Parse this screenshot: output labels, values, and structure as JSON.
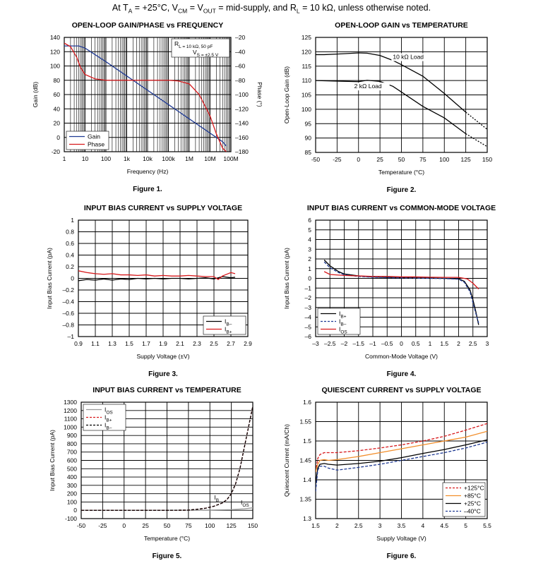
{
  "header": {
    "parts": [
      "At T",
      "A",
      " = +25°C, V",
      "CM",
      " = V",
      "OUT",
      " = mid-supply, and R",
      "L",
      " = 10 kΩ, unless otherwise noted."
    ]
  },
  "chart_data": [
    {
      "id": "fig1",
      "type": "line",
      "title": "OPEN-LOOP GAIN/PHASE vs FREQUENCY",
      "figure_label": "Figure 1.",
      "xlabel": "Frequency (Hz)",
      "ylabel": "Gain (dB)",
      "y2label": "Phase (°)",
      "x_scale": "log",
      "xlim": [
        1,
        100000000
      ],
      "ylim": [
        -20,
        140
      ],
      "y2lim": [
        -180,
        -20
      ],
      "x_ticks": [
        1,
        10,
        100,
        1000,
        10000,
        100000,
        1000000,
        10000000,
        100000000
      ],
      "x_tick_labels": [
        "1",
        "10",
        "100",
        "1k",
        "10k",
        "100k",
        "1M",
        "10M",
        "100M"
      ],
      "y_ticks": [
        -20,
        0,
        20,
        40,
        60,
        80,
        100,
        120,
        140
      ],
      "y2_ticks": [
        -180,
        -160,
        -140,
        -120,
        -100,
        -80,
        -60,
        -40,
        -20
      ],
      "annotation_lines": [
        "R_L = 10 kΩ, 50 pF",
        "V_S = ±2.5 V"
      ],
      "legend_position": "bottom-left",
      "series": [
        {
          "name": "Gain",
          "color": "#1f3a93",
          "axis": "left",
          "x": [
            1,
            5,
            10,
            100,
            1000,
            10000,
            100000,
            1000000,
            10000000,
            40000000,
            60000000
          ],
          "y": [
            128,
            128,
            125,
            106,
            86,
            66,
            46,
            26,
            6,
            -6,
            -12
          ]
        },
        {
          "name": "Phase",
          "color": "#d7191c",
          "axis": "right",
          "x": [
            1,
            2,
            4,
            6,
            10,
            30,
            100,
            1000,
            10000,
            100000,
            300000,
            1000000,
            3000000,
            10000000,
            20000000,
            40000000,
            60000000
          ],
          "y": [
            -28,
            -33,
            -48,
            -62,
            -72,
            -78,
            -80,
            -80,
            -80,
            -80,
            -81,
            -85,
            -100,
            -130,
            -155,
            -175,
            -180
          ]
        }
      ]
    },
    {
      "id": "fig2",
      "type": "line",
      "title": "OPEN-LOOP GAIN vs TEMPERATURE",
      "figure_label": "Figure 2.",
      "xlabel": "Temperature (°C)",
      "ylabel": "Open-Loop Gain (dB)",
      "xlim": [
        -50,
        150
      ],
      "ylim": [
        85,
        125
      ],
      "x_ticks": [
        -50,
        -25,
        0,
        25,
        50,
        75,
        100,
        125,
        150
      ],
      "y_ticks": [
        85,
        90,
        95,
        100,
        105,
        110,
        115,
        120,
        125
      ],
      "series": [
        {
          "name": "10 kΩ Load",
          "color": "#000000",
          "x": [
            -50,
            -40,
            -25,
            0,
            10,
            25,
            40,
            50,
            75,
            100,
            125,
            150
          ],
          "y": [
            119,
            119,
            119.2,
            119.6,
            119.5,
            118.7,
            117,
            115.5,
            111.5,
            105.5,
            99,
            93
          ],
          "dashed_from": 125,
          "label_at": [
            40,
            117.5
          ]
        },
        {
          "name": "2 kΩ Load",
          "color": "#000000",
          "x": [
            -50,
            -25,
            0,
            10,
            25,
            40,
            50,
            75,
            100,
            125,
            150
          ],
          "y": [
            110,
            109.8,
            109.6,
            110.1,
            109.7,
            108,
            106,
            101,
            97,
            91.5,
            87
          ],
          "dashed_from": 125,
          "label_at": [
            -5,
            107.3
          ]
        }
      ]
    },
    {
      "id": "fig3",
      "type": "line",
      "title": "INPUT BIAS CURRENT vs SUPPLY VOLTAGE",
      "figure_label": "Figure 3.",
      "xlabel": "Supply Voltage (±V)",
      "ylabel": "Input Bias Current (pA)",
      "xlim": [
        0.9,
        2.9
      ],
      "ylim": [
        -1,
        1
      ],
      "x_ticks": [
        0.9,
        1.1,
        1.3,
        1.5,
        1.7,
        1.9,
        2.1,
        2.3,
        2.5,
        2.7,
        2.9
      ],
      "y_ticks": [
        -1,
        -0.8,
        -0.6,
        -0.4,
        -0.2,
        0,
        0.2,
        0.4,
        0.6,
        0.8,
        1
      ],
      "y_tick_labels": [
        "–1",
        "–0.8",
        "–0.6",
        "–0.4",
        "–0.2",
        "0",
        "0.2",
        "0.4",
        "0.6",
        "0.8",
        "1"
      ],
      "legend_position": "bottom-right",
      "series": [
        {
          "name": "I_B–",
          "color": "#000000",
          "x": [
            0.9,
            1.0,
            1.1,
            1.2,
            1.3,
            1.4,
            1.5,
            1.6,
            1.7,
            1.8,
            1.9,
            2.0,
            2.1,
            2.2,
            2.3,
            2.4,
            2.5,
            2.6,
            2.7,
            2.75
          ],
          "y": [
            -0.04,
            -0.02,
            -0.03,
            -0.01,
            -0.03,
            -0.01,
            -0.02,
            0.0,
            -0.01,
            0.0,
            -0.01,
            0.0,
            0.0,
            -0.01,
            0.0,
            0.01,
            -0.01,
            0.03,
            0.01,
            0.02
          ]
        },
        {
          "name": "I_B+",
          "color": "#d7191c",
          "x": [
            0.9,
            1.0,
            1.1,
            1.2,
            1.3,
            1.4,
            1.5,
            1.6,
            1.7,
            1.8,
            1.9,
            2.0,
            2.1,
            2.2,
            2.3,
            2.4,
            2.5,
            2.55,
            2.6,
            2.7,
            2.75
          ],
          "y": [
            0.13,
            0.1,
            0.08,
            0.07,
            0.08,
            0.06,
            0.06,
            0.05,
            0.06,
            0.04,
            0.05,
            0.04,
            0.04,
            0.05,
            0.04,
            0.03,
            0.03,
            -0.02,
            0.04,
            0.1,
            0.08
          ]
        }
      ]
    },
    {
      "id": "fig4",
      "type": "line",
      "title": "INPUT BIAS CURRENT vs COMMON-MODE VOLTAGE",
      "figure_label": "Figure 4.",
      "xlabel": "Common-Mode Voltage (V)",
      "ylabel": "Input Bias Current (pA)",
      "xlim": [
        -3,
        3
      ],
      "ylim": [
        -6,
        6
      ],
      "x_ticks": [
        -3,
        -2.5,
        -2,
        -1.5,
        -1,
        -0.5,
        0,
        0.5,
        1,
        1.5,
        2,
        2.5,
        3
      ],
      "x_tick_labels": [
        "–3",
        "–2.5",
        "–2",
        "–1.5",
        "–1",
        "–0.5",
        "0",
        "0.5",
        "1",
        "1.5",
        "2",
        "2.5",
        "3"
      ],
      "y_ticks": [
        -6,
        -5,
        -4,
        -3,
        -2,
        -1,
        0,
        1,
        2,
        3,
        4,
        5,
        6
      ],
      "y_tick_labels": [
        "–6",
        "–5",
        "–4",
        "–3",
        "–2",
        "–1",
        "0",
        "1",
        "2",
        "3",
        "4",
        "5",
        "6"
      ],
      "legend_position": "bottom-left",
      "series": [
        {
          "name": "I_B+",
          "color": "#000000",
          "x": [
            -2.7,
            -2.5,
            -2.2,
            -2,
            -1.5,
            -1,
            -0.5,
            0,
            0.5,
            1,
            1.5,
            2,
            2.2,
            2.4,
            2.5,
            2.6,
            2.7
          ],
          "y": [
            1.9,
            1.3,
            0.7,
            0.45,
            0.25,
            0.15,
            0.1,
            0.08,
            0.05,
            0.03,
            0.0,
            -0.05,
            -0.3,
            -1.2,
            -2.2,
            -3.4,
            -4.8
          ]
        },
        {
          "name": "I_B–",
          "color": "#1f3a93",
          "dashed": true,
          "x": [
            -2.7,
            -2.5,
            -2.2,
            -2,
            -1.5,
            -1,
            -0.5,
            0,
            0.5,
            1,
            1.5,
            2,
            2.2,
            2.4,
            2.5,
            2.6,
            2.7
          ],
          "y": [
            1.7,
            1.1,
            0.6,
            0.38,
            0.2,
            0.12,
            0.08,
            0.05,
            0.03,
            0.0,
            -0.02,
            -0.08,
            -0.4,
            -1.4,
            -2.5,
            -3.6,
            -4.6
          ]
        },
        {
          "name": "I_OS",
          "color": "#d7191c",
          "x": [
            -2.7,
            -2.5,
            -2,
            -1.5,
            -1,
            -0.5,
            0,
            0.5,
            1,
            1.5,
            2,
            2.3,
            2.5,
            2.7
          ],
          "y": [
            0.7,
            0.4,
            0.3,
            0.25,
            0.2,
            0.2,
            0.15,
            0.15,
            0.12,
            0.1,
            0.1,
            -0.05,
            -0.5,
            -1.1
          ]
        }
      ]
    },
    {
      "id": "fig5",
      "type": "line",
      "title": "INPUT BIAS CURRENT vs TEMPERATURE",
      "figure_label": "Figure 5.",
      "xlabel": "Temperature (°C)",
      "ylabel": "Input Bias Current (pA)",
      "xlim": [
        -50,
        150
      ],
      "ylim": [
        -100,
        1300
      ],
      "x_ticks": [
        -50,
        -25,
        0,
        25,
        50,
        75,
        100,
        125,
        150
      ],
      "y_ticks": [
        -100,
        0,
        100,
        200,
        300,
        400,
        500,
        600,
        700,
        800,
        900,
        1000,
        1100,
        1200,
        1300
      ],
      "legend_position": "top-left",
      "annotations": [
        {
          "text": "I_B",
          "at": [
            105,
            130
          ]
        },
        {
          "text": "I_OS",
          "at": [
            136,
            70
          ]
        }
      ],
      "series": [
        {
          "name": "I_OS",
          "color": "#999999",
          "x": [
            -50,
            0,
            50,
            100,
            125,
            140,
            150
          ],
          "y": [
            0,
            0,
            0,
            3,
            8,
            18,
            30
          ]
        },
        {
          "name": "I_B+",
          "color": "#d7191c",
          "dashed": true,
          "x": [
            -50,
            0,
            50,
            75,
            85,
            95,
            105,
            115,
            120,
            125,
            130,
            135,
            140,
            145,
            150
          ],
          "y": [
            0,
            0,
            0,
            2,
            12,
            25,
            50,
            90,
            130,
            200,
            320,
            500,
            750,
            1000,
            1250
          ]
        },
        {
          "name": "I_B–",
          "color": "#000000",
          "dashed": true,
          "x": [
            -50,
            0,
            50,
            75,
            85,
            95,
            105,
            115,
            120,
            125,
            130,
            135,
            140,
            145,
            150
          ],
          "y": [
            0,
            0,
            0,
            2,
            12,
            25,
            50,
            90,
            130,
            200,
            320,
            500,
            750,
            1000,
            1250
          ]
        }
      ]
    },
    {
      "id": "fig6",
      "type": "line",
      "title": "QUIESCENT CURRENT vs SUPPLY VOLTAGE",
      "figure_label": "Figure 6.",
      "xlabel": "Supply Voltage (V)",
      "ylabel": "Quiescent Current (mA/Ch)",
      "xlim": [
        1.5,
        5.5
      ],
      "ylim": [
        1.3,
        1.6
      ],
      "x_ticks": [
        1.5,
        2,
        2.5,
        3,
        3.5,
        4,
        4.5,
        5,
        5.5
      ],
      "y_ticks": [
        1.3,
        1.35,
        1.4,
        1.45,
        1.5,
        1.55,
        1.6
      ],
      "legend_position": "bottom-right",
      "series": [
        {
          "name": "+125°C",
          "color": "#d7191c",
          "dashed": true,
          "x": [
            1.5,
            1.55,
            1.6,
            1.7,
            1.8,
            2,
            2.5,
            3,
            3.5,
            4,
            4.5,
            5,
            5.5
          ],
          "y": [
            1.42,
            1.455,
            1.465,
            1.47,
            1.47,
            1.47,
            1.475,
            1.482,
            1.49,
            1.5,
            1.512,
            1.528,
            1.545
          ]
        },
        {
          "name": "+85°C",
          "color": "#f28e2b",
          "x": [
            1.5,
            1.55,
            1.6,
            1.7,
            1.8,
            2,
            2.5,
            3,
            3.5,
            4,
            4.5,
            5,
            5.5
          ],
          "y": [
            1.42,
            1.44,
            1.45,
            1.452,
            1.45,
            1.452,
            1.46,
            1.47,
            1.48,
            1.49,
            1.5,
            1.51,
            1.525
          ]
        },
        {
          "name": "+25°C",
          "color": "#000000",
          "x": [
            1.5,
            1.55,
            1.6,
            1.7,
            1.8,
            2,
            2.5,
            3,
            3.5,
            4,
            4.5,
            5,
            5.5
          ],
          "y": [
            1.39,
            1.43,
            1.44,
            1.442,
            1.44,
            1.438,
            1.442,
            1.448,
            1.457,
            1.468,
            1.478,
            1.49,
            1.503
          ]
        },
        {
          "name": "–40°C",
          "color": "#1f3a93",
          "dashed": true,
          "x": [
            1.5,
            1.55,
            1.6,
            1.7,
            1.8,
            2,
            2.5,
            3,
            3.5,
            4,
            4.5,
            5,
            5.5
          ],
          "y": [
            1.37,
            1.425,
            1.435,
            1.435,
            1.43,
            1.425,
            1.432,
            1.44,
            1.45,
            1.46,
            1.47,
            1.482,
            1.497
          ]
        }
      ]
    }
  ]
}
